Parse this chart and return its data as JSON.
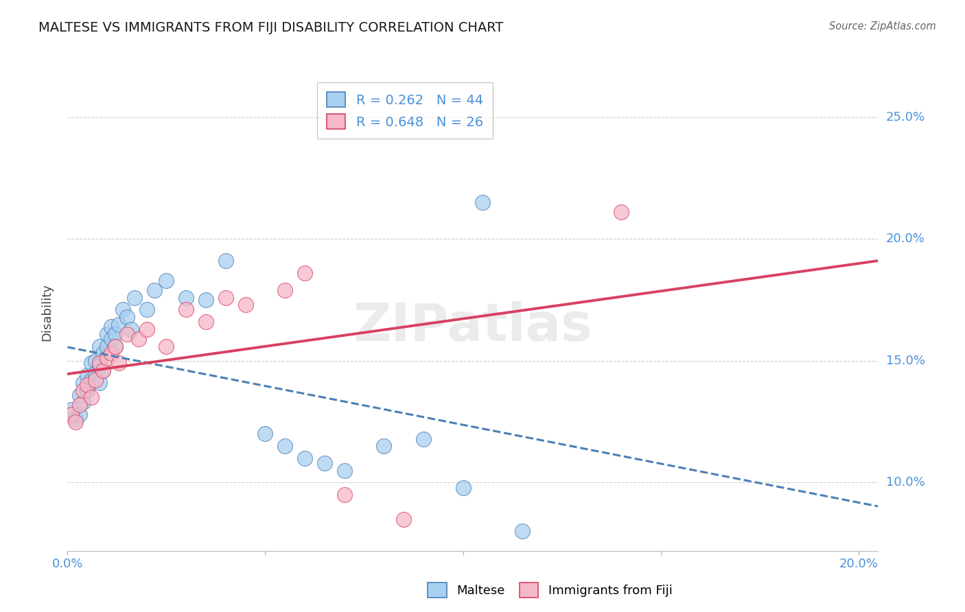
{
  "title": "MALTESE VS IMMIGRANTS FROM FIJI DISABILITY CORRELATION CHART",
  "source": "Source: ZipAtlas.com",
  "ylabel": "Disability",
  "xlim": [
    0.0,
    0.205
  ],
  "ylim": [
    0.072,
    0.268
  ],
  "yticks": [
    0.1,
    0.15,
    0.2,
    0.25
  ],
  "ytick_labels": [
    "10.0%",
    "15.0%",
    "20.0%",
    "25.0%"
  ],
  "xticks": [
    0.0,
    0.05,
    0.1,
    0.15,
    0.2
  ],
  "xtick_labels": [
    "0.0%",
    "",
    "",
    "",
    "20.0%"
  ],
  "legend_r1": "R = 0.262   N = 44",
  "legend_r2": "R = 0.648   N = 26",
  "maltese_color": "#A8D0F0",
  "fiji_color": "#F5B8C8",
  "trendline_blue_color": "#4A7FB5",
  "trendline_pink_color": "#D94060",
  "label_color": "#4A90D9",
  "background_color": "#FFFFFF",
  "grid_color": "#CCCCCC",
  "maltese_x": [
    0.001,
    0.002,
    0.003,
    0.003,
    0.004,
    0.004,
    0.005,
    0.005,
    0.006,
    0.006,
    0.007,
    0.007,
    0.008,
    0.008,
    0.008,
    0.009,
    0.009,
    0.01,
    0.01,
    0.011,
    0.011,
    0.012,
    0.012,
    0.013,
    0.014,
    0.015,
    0.016,
    0.017,
    0.02,
    0.022,
    0.025,
    0.03,
    0.035,
    0.04,
    0.05,
    0.055,
    0.06,
    0.065,
    0.07,
    0.08,
    0.09,
    0.1,
    0.105,
    0.115
  ],
  "maltese_y": [
    0.13,
    0.126,
    0.136,
    0.128,
    0.141,
    0.133,
    0.138,
    0.144,
    0.142,
    0.149,
    0.145,
    0.15,
    0.156,
    0.148,
    0.141,
    0.153,
    0.146,
    0.156,
    0.161,
    0.159,
    0.164,
    0.161,
    0.156,
    0.165,
    0.171,
    0.168,
    0.163,
    0.176,
    0.171,
    0.179,
    0.183,
    0.176,
    0.175,
    0.191,
    0.12,
    0.115,
    0.11,
    0.108,
    0.105,
    0.115,
    0.118,
    0.098,
    0.215,
    0.08
  ],
  "fiji_x": [
    0.001,
    0.002,
    0.003,
    0.004,
    0.005,
    0.006,
    0.007,
    0.008,
    0.009,
    0.01,
    0.011,
    0.012,
    0.013,
    0.015,
    0.018,
    0.02,
    0.025,
    0.03,
    0.035,
    0.04,
    0.045,
    0.055,
    0.06,
    0.07,
    0.085,
    0.14
  ],
  "fiji_y": [
    0.128,
    0.125,
    0.132,
    0.138,
    0.14,
    0.135,
    0.142,
    0.149,
    0.146,
    0.151,
    0.153,
    0.156,
    0.149,
    0.161,
    0.159,
    0.163,
    0.156,
    0.171,
    0.166,
    0.176,
    0.173,
    0.179,
    0.186,
    0.095,
    0.085,
    0.211
  ]
}
